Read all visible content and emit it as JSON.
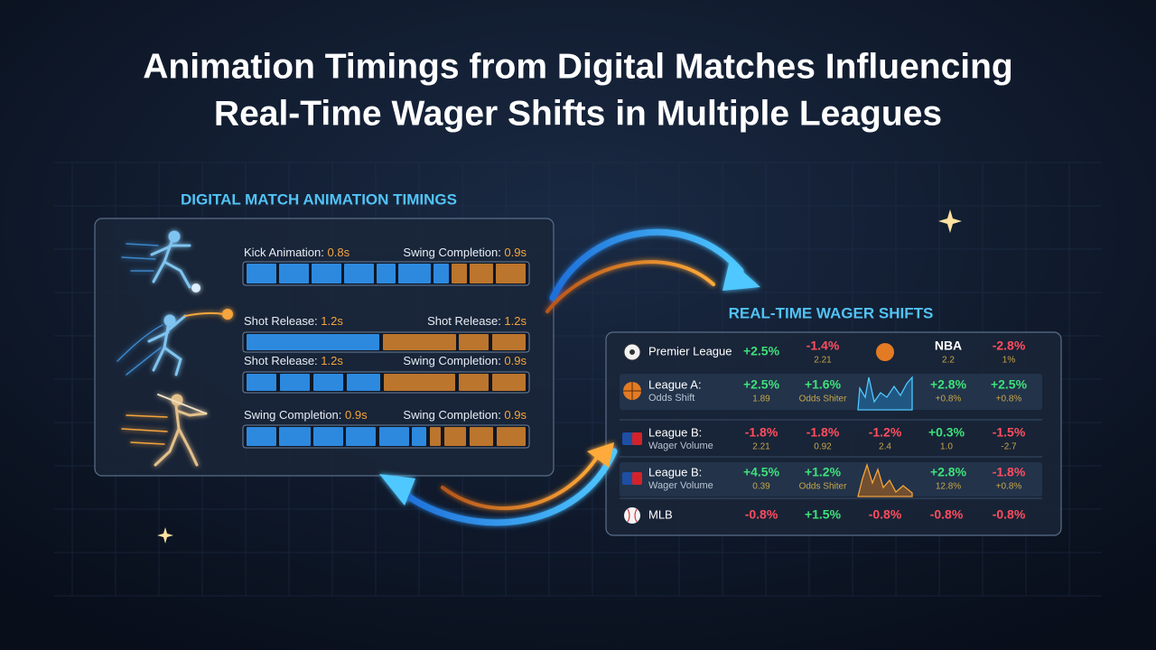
{
  "header": {
    "title_lines": [
      "Animation Timings from Digital Matches Influencing",
      "Real-Time Wager Shifts in Multiple Leagues"
    ]
  },
  "timings_panel": {
    "heading": "DIGITAL MATCH ANIMATION TIMINGS",
    "rows": [
      {
        "left": {
          "name": "Kick Animation:",
          "time": "0.8s"
        },
        "right": {
          "name": "Swing Completion:",
          "time": "0.9s"
        }
      },
      {
        "left": {
          "name": "Shot Release:",
          "time": "1.2s"
        },
        "right": {
          "name": "Shot Release:",
          "time": "1.2s"
        }
      },
      {
        "left": {
          "name": "Shot Release:",
          "time": "1.2s"
        },
        "right": {
          "name": "Swing Completion:",
          "time": "0.9s"
        }
      },
      {
        "left": {
          "name": "Swing Completion:",
          "time": "0.9s"
        },
        "right": {
          "name": "Swing Completion:",
          "time": "0.9s"
        }
      }
    ]
  },
  "wager_panel": {
    "heading": "REAL-TIME WAGER SHIFTS",
    "rows": [
      {
        "league": "Premier League",
        "cells": [
          {
            "text": "+2.5%"
          },
          {
            "text": "-1.4%",
            "sub": "2.21"
          },
          {
            "text": "NBA",
            "sub": "2.2"
          },
          {
            "text": "-2.8%",
            "sub": "1%"
          }
        ]
      },
      {
        "league": "League A:",
        "metric": "Odds Shift",
        "cells": [
          {
            "text": "+2.5%",
            "sub": "1.89"
          },
          {
            "text": "+1.6%",
            "sub": "Odds Shiter"
          },
          {
            "text": "+2.8%",
            "sub": "+0.8%"
          },
          {
            "text": "+2.5%",
            "sub": "+0.8%"
          }
        ]
      },
      {
        "league": "League B:",
        "metric": "Wager Volume",
        "cells": [
          {
            "text": "-1.8%",
            "sub": "2.21"
          },
          {
            "text": "-1.8%",
            "sub": "0.92"
          },
          {
            "text": "-1.2%",
            "sub": "2.4"
          },
          {
            "text": "+0.3%",
            "sub": "1.0"
          },
          {
            "text": "-1.5%",
            "sub": "-2.7"
          }
        ]
      },
      {
        "league": "League B:",
        "metric": "Wager Volume",
        "cells": [
          {
            "text": "+4.5%",
            "sub": "0.39"
          },
          {
            "text": "+1.2%",
            "sub": "Odds Shiter"
          },
          {
            "text": "+2.8%",
            "sub": "12.8%"
          },
          {
            "text": "-1.8%",
            "sub": "+0.8%"
          }
        ]
      },
      {
        "league": "MLB",
        "cells": [
          {
            "text": "-0.8%"
          },
          {
            "text": "+1.5%"
          },
          {
            "text": "-0.8%"
          },
          {
            "text": "-0.8%"
          },
          {
            "text": "-0.8%"
          }
        ]
      }
    ]
  }
}
